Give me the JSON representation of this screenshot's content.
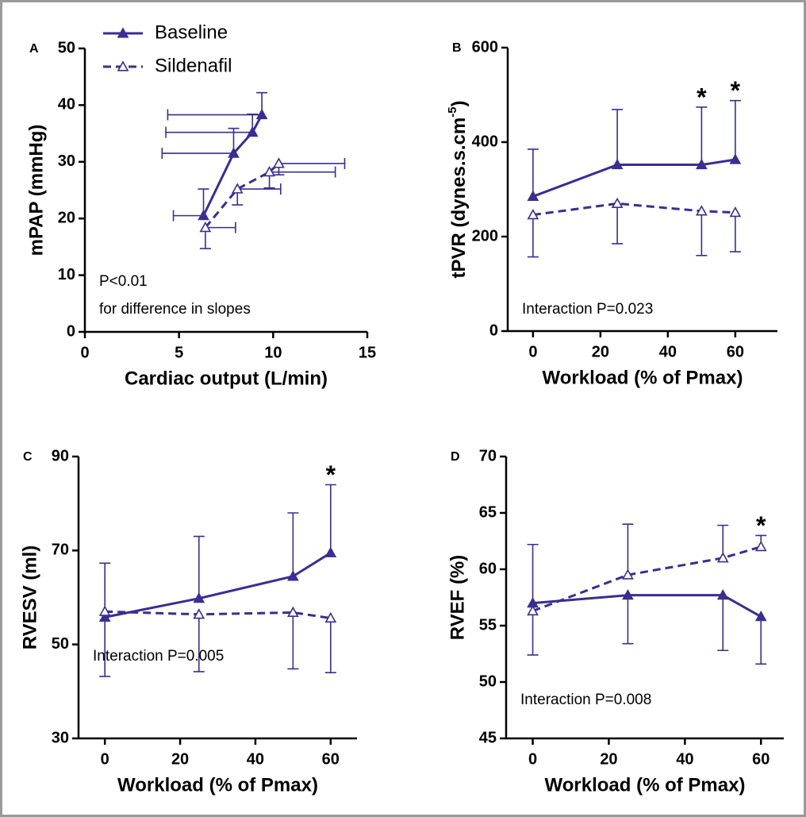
{
  "chart_data": [
    {
      "type": "line",
      "panel_label": "A",
      "x_label": "Cardiac output (L/min)",
      "y_label": "mPAP (mmHg)",
      "xlim": [
        0,
        15
      ],
      "xticks": [
        0,
        5,
        10,
        15
      ],
      "ylim": [
        0,
        50
      ],
      "yticks": [
        0,
        10,
        20,
        30,
        40,
        50
      ],
      "annotation": [
        "P<0.01",
        "for difference in slopes"
      ],
      "legend": "top-left",
      "series": [
        {
          "name": "Baseline",
          "color": "#3a2d95",
          "line_style": "solid",
          "marker": "filled",
          "x": [
            6.3,
            7.9,
            8.9,
            9.4
          ],
          "values": [
            20.5,
            31.5,
            35.2,
            38.3
          ],
          "xerr": [
            1.6,
            3.8,
            4.6,
            5.0
          ],
          "xerr_side": "low",
          "yerr": [
            4.7,
            4.4,
            3.2,
            3.9
          ],
          "yerr_side": "high"
        },
        {
          "name": "Sildenafil",
          "color": "#3a2d95",
          "line_style": "dashed",
          "marker": "open",
          "x": [
            6.4,
            8.1,
            9.8,
            10.3
          ],
          "values": [
            18.4,
            25.2,
            28.2,
            29.7
          ],
          "xerr": [
            1.6,
            2.3,
            3.5,
            3.5
          ],
          "xerr_side": "high",
          "yerr": [
            3.7,
            2.8,
            2.8,
            2.0
          ],
          "yerr_side": "low"
        }
      ]
    },
    {
      "type": "line",
      "panel_label": "B",
      "x_label": "Workload (% of Pmax)",
      "y_label": [
        "tPVR (dynes.s.cm",
        "-5",
        ")"
      ],
      "x": [
        0,
        25,
        50,
        60
      ],
      "xlim": [
        -7.5,
        72.5
      ],
      "xticks": [
        0,
        20,
        40,
        60
      ],
      "ylim": [
        0,
        600
      ],
      "yticks": [
        0,
        200,
        400,
        600
      ],
      "annotation": [
        "Interaction P=0.023"
      ],
      "significance": [
        null,
        null,
        "*",
        "*"
      ],
      "series": [
        {
          "color": "#3a2d95",
          "line_style": "solid",
          "marker": "filled",
          "values": [
            285,
            352,
            352,
            363
          ],
          "yerr": [
            100,
            117,
            122,
            125
          ],
          "yerr_side": "high"
        },
        {
          "color": "#3a2d95",
          "line_style": "dashed",
          "marker": "open",
          "values": [
            246,
            270,
            254,
            251
          ],
          "yerr": [
            89,
            85,
            94,
            83
          ],
          "yerr_side": "low"
        }
      ]
    },
    {
      "type": "line",
      "panel_label": "C",
      "x_label": "Workload (% of Pmax)",
      "y_label": "RVESV (ml)",
      "x": [
        0,
        25,
        50,
        60
      ],
      "xlim": [
        -7,
        67
      ],
      "xticks": [
        0,
        20,
        40,
        60
      ],
      "ylim": [
        30,
        90
      ],
      "yticks": [
        30,
        50,
        70,
        90
      ],
      "annotation": [
        "Interaction P=0.005"
      ],
      "significance": [
        null,
        null,
        null,
        "*"
      ],
      "series": [
        {
          "color": "#3a2d95",
          "line_style": "solid",
          "marker": "filled",
          "values": [
            55.8,
            59.8,
            64.5,
            69.5
          ],
          "yerr": [
            11.5,
            13.2,
            13.5,
            14.5
          ],
          "yerr_side": "high"
        },
        {
          "color": "#3a2d95",
          "line_style": "dashed",
          "marker": "open",
          "values": [
            57,
            56.4,
            56.8,
            55.6
          ],
          "yerr": [
            13.8,
            12.2,
            12,
            11.6
          ],
          "yerr_side": "low"
        }
      ]
    },
    {
      "type": "line",
      "panel_label": "D",
      "x_label": "Workload (% of Pmax)",
      "y_label": "RVEF (%)",
      "x": [
        0,
        25,
        50,
        60
      ],
      "xlim": [
        -7,
        66
      ],
      "xticks": [
        0,
        20,
        40,
        60
      ],
      "ylim": [
        45,
        70
      ],
      "yticks": [
        45,
        50,
        55,
        60,
        65,
        70
      ],
      "annotation": [
        "Interaction P=0.008"
      ],
      "significance": [
        null,
        null,
        null,
        "*"
      ],
      "series": [
        {
          "color": "#3a2d95",
          "line_style": "solid",
          "marker": "filled",
          "values": [
            57,
            57.7,
            57.7,
            55.8
          ],
          "yerr": [
            4.6,
            4.3,
            4.9,
            4.2
          ],
          "yerr_side": "low"
        },
        {
          "color": "#3a2d95",
          "line_style": "dashed",
          "marker": "open",
          "values": [
            56.3,
            59.5,
            61,
            62
          ],
          "yerr": [
            5.9,
            4.5,
            2.9,
            1.0
          ],
          "yerr_side": "high"
        }
      ]
    }
  ]
}
